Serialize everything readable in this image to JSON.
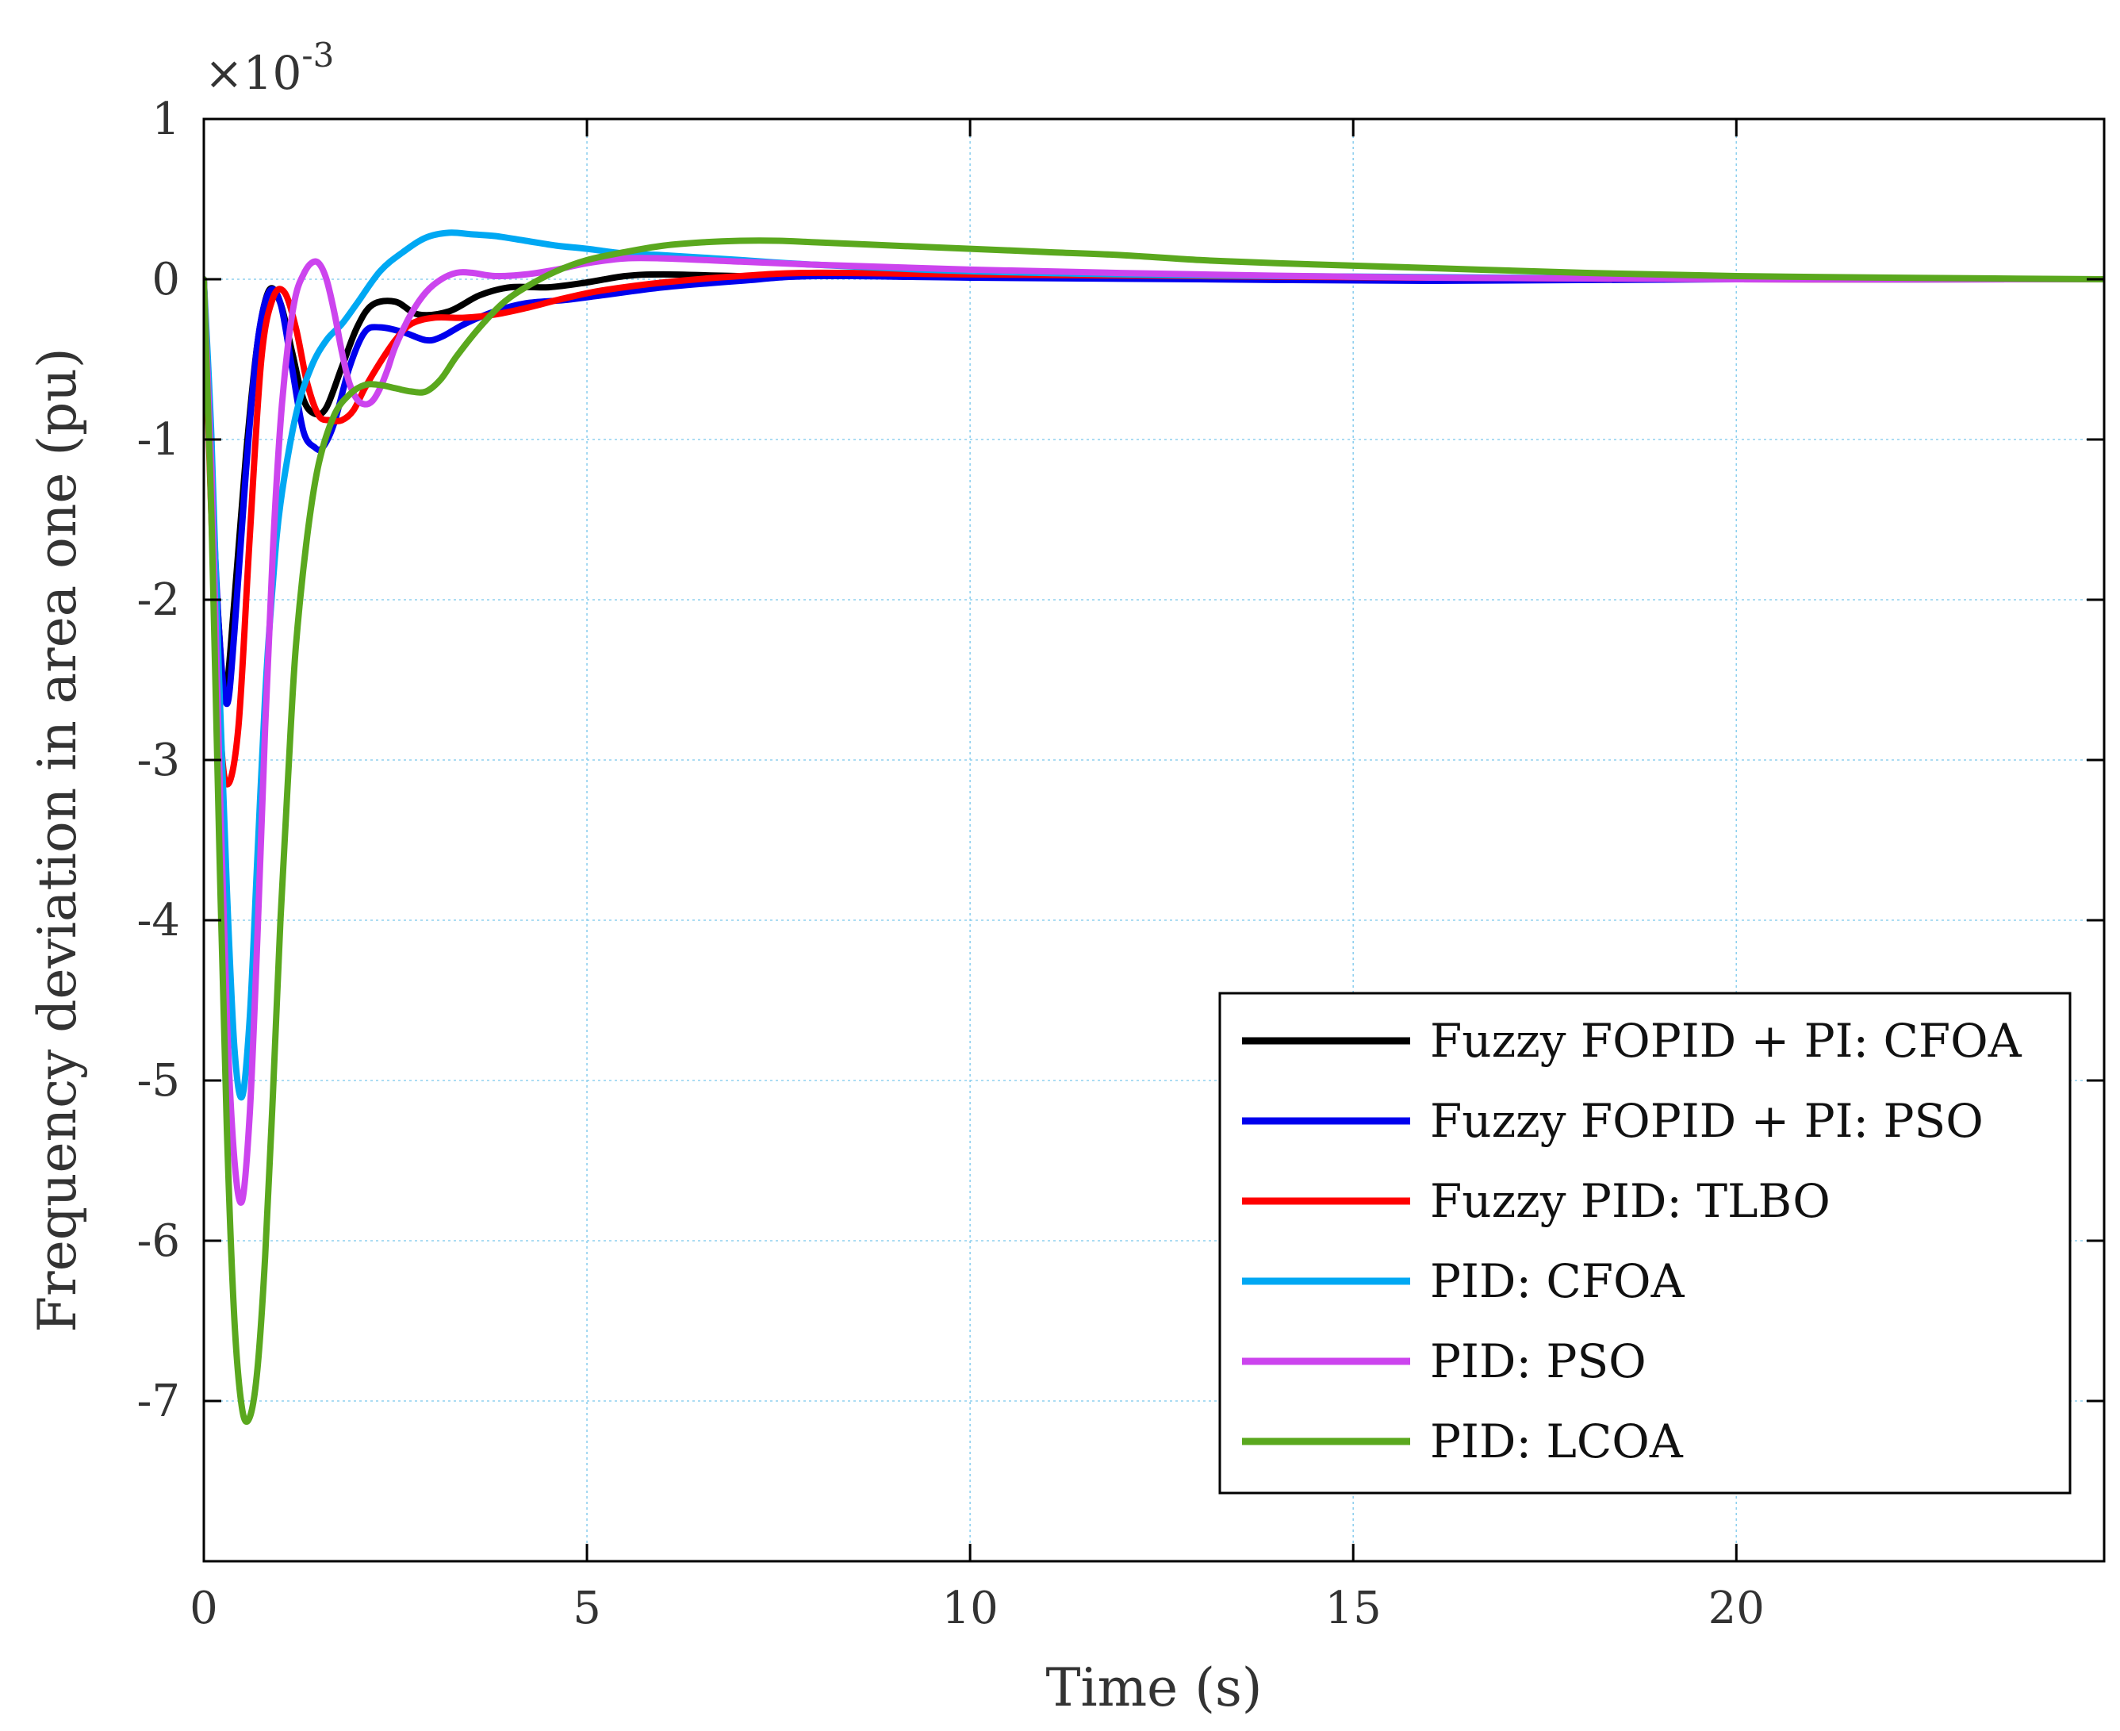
{
  "chart_data": {
    "type": "line",
    "title": "",
    "xlabel": "Time (s)",
    "ylabel": "Frequency deviation in area one  (pu)",
    "y_scale_factor": "×10",
    "y_scale_exponent": "-3",
    "xlim": [
      0,
      24.8
    ],
    "ylim": [
      -8,
      1
    ],
    "x_ticks": [
      0,
      5,
      10,
      15,
      20
    ],
    "x_tick_labels": [
      "0",
      "5",
      "10",
      "15",
      "20"
    ],
    "y_ticks": [
      1,
      0,
      -1,
      -2,
      -3,
      -4,
      -5,
      -6,
      -7
    ],
    "y_tick_labels": [
      "1",
      "0",
      "-1",
      "-2",
      "-3",
      "-4",
      "-5",
      "-6",
      "-7"
    ],
    "grid": true,
    "legend_position": "bottom-right",
    "series": [
      {
        "name": "Fuzzy FOPID + PI: CFOA",
        "color": "#000000",
        "x": [
          0,
          0.1,
          0.2,
          0.28,
          0.4,
          0.55,
          0.7,
          0.85,
          1.0,
          1.15,
          1.3,
          1.45,
          1.6,
          1.8,
          2.0,
          2.2,
          2.5,
          2.8,
          3.2,
          3.6,
          4.0,
          4.5,
          5.0,
          5.5,
          6.0,
          7.0,
          8.0,
          10,
          13,
          16,
          20,
          24.8
        ],
        "y": [
          0,
          -1.3,
          -2.2,
          -2.6,
          -2.0,
          -1.1,
          -0.4,
          -0.07,
          -0.15,
          -0.45,
          -0.75,
          -0.84,
          -0.8,
          -0.55,
          -0.3,
          -0.16,
          -0.14,
          -0.22,
          -0.2,
          -0.1,
          -0.05,
          -0.05,
          -0.02,
          0.02,
          0.03,
          0.02,
          0.02,
          0.02,
          0.01,
          0.01,
          0.0,
          0.0
        ]
      },
      {
        "name": "Fuzzy FOPID + PI: PSO",
        "color": "#0000ee",
        "x": [
          0,
          0.1,
          0.2,
          0.3,
          0.4,
          0.55,
          0.7,
          0.85,
          1.0,
          1.15,
          1.3,
          1.45,
          1.55,
          1.7,
          1.9,
          2.1,
          2.3,
          2.6,
          2.9,
          3.1,
          3.4,
          3.8,
          4.2,
          4.7,
          5.2,
          6.0,
          7.0,
          8.0,
          10,
          13,
          16,
          20,
          24.8
        ],
        "y": [
          0,
          -1.2,
          -2.2,
          -2.65,
          -2.2,
          -1.2,
          -0.4,
          -0.08,
          -0.15,
          -0.55,
          -0.95,
          -1.05,
          -1.05,
          -0.9,
          -0.55,
          -0.33,
          -0.3,
          -0.33,
          -0.38,
          -0.36,
          -0.28,
          -0.2,
          -0.15,
          -0.13,
          -0.1,
          -0.05,
          -0.01,
          0.02,
          0.01,
          0.0,
          -0.01,
          0.0,
          0.0
        ]
      },
      {
        "name": "Fuzzy PID: TLBO",
        "color": "#ff0000",
        "x": [
          0,
          0.1,
          0.2,
          0.3,
          0.45,
          0.6,
          0.75,
          0.9,
          1.05,
          1.2,
          1.35,
          1.5,
          1.65,
          1.8,
          1.95,
          2.1,
          2.3,
          2.5,
          2.7,
          3.0,
          3.4,
          3.8,
          4.2,
          4.7,
          5.2,
          6.0,
          7.0,
          8.0,
          10,
          13,
          16,
          20,
          24.8
        ],
        "y": [
          0,
          -1.5,
          -2.7,
          -3.15,
          -2.8,
          -1.6,
          -0.5,
          -0.12,
          -0.08,
          -0.3,
          -0.65,
          -0.85,
          -0.88,
          -0.88,
          -0.82,
          -0.68,
          -0.52,
          -0.38,
          -0.28,
          -0.24,
          -0.24,
          -0.22,
          -0.18,
          -0.12,
          -0.07,
          -0.02,
          0.02,
          0.04,
          0.03,
          0.02,
          0.01,
          0.0,
          0.0
        ]
      },
      {
        "name": "PID: CFOA",
        "color": "#00a8f3",
        "x": [
          0,
          0.1,
          0.2,
          0.3,
          0.4,
          0.5,
          0.6,
          0.7,
          0.8,
          0.9,
          1.0,
          1.2,
          1.4,
          1.6,
          1.8,
          2.0,
          2.3,
          2.6,
          2.9,
          3.2,
          3.5,
          3.8,
          4.2,
          4.6,
          5.0,
          5.5,
          6.0,
          7.0,
          8.0,
          10,
          12,
          14,
          17,
          20,
          24.8
        ],
        "y": [
          0,
          -1.0,
          -2.5,
          -3.8,
          -4.8,
          -5.1,
          -4.6,
          -3.6,
          -2.6,
          -1.9,
          -1.4,
          -0.85,
          -0.55,
          -0.38,
          -0.28,
          -0.15,
          0.05,
          0.17,
          0.26,
          0.29,
          0.28,
          0.27,
          0.24,
          0.21,
          0.19,
          0.16,
          0.15,
          0.12,
          0.09,
          0.05,
          0.03,
          0.02,
          0.01,
          0.0,
          0.0
        ]
      },
      {
        "name": "PID: PSO",
        "color": "#cc44ee",
        "x": [
          0,
          0.1,
          0.2,
          0.3,
          0.4,
          0.5,
          0.6,
          0.7,
          0.8,
          0.9,
          1.0,
          1.1,
          1.2,
          1.3,
          1.4,
          1.5,
          1.6,
          1.7,
          1.8,
          1.9,
          2.0,
          2.1,
          2.2,
          2.3,
          2.4,
          2.5,
          2.7,
          2.9,
          3.1,
          3.3,
          3.5,
          3.8,
          4.2,
          4.6,
          5.0,
          5.5,
          6.0,
          7.0,
          8.0,
          10,
          13,
          16,
          20,
          24.8
        ],
        "y": [
          0,
          -1.2,
          -3.0,
          -4.6,
          -5.5,
          -5.75,
          -5.2,
          -4.1,
          -2.8,
          -1.7,
          -0.9,
          -0.4,
          -0.1,
          0.03,
          0.1,
          0.1,
          0.0,
          -0.2,
          -0.45,
          -0.65,
          -0.75,
          -0.78,
          -0.76,
          -0.68,
          -0.56,
          -0.42,
          -0.22,
          -0.08,
          0.0,
          0.04,
          0.04,
          0.02,
          0.03,
          0.06,
          0.1,
          0.13,
          0.13,
          0.11,
          0.09,
          0.06,
          0.03,
          0.01,
          0.0,
          0.0
        ]
      },
      {
        "name": "PID: LCOA",
        "color": "#5aa81e",
        "x": [
          0,
          0.1,
          0.2,
          0.3,
          0.4,
          0.5,
          0.6,
          0.7,
          0.8,
          0.9,
          1.0,
          1.1,
          1.2,
          1.35,
          1.5,
          1.7,
          1.9,
          2.1,
          2.3,
          2.5,
          2.7,
          2.9,
          3.1,
          3.3,
          3.6,
          3.9,
          4.2,
          4.6,
          5.0,
          5.5,
          6.0,
          6.5,
          7.0,
          7.5,
          8.0,
          9.0,
          10,
          11,
          12,
          13,
          14,
          16,
          18,
          20,
          22,
          24.8
        ],
        "y": [
          0,
          -1.5,
          -3.5,
          -5.3,
          -6.5,
          -7.05,
          -7.1,
          -6.8,
          -6.1,
          -5.1,
          -4.0,
          -3.1,
          -2.3,
          -1.6,
          -1.15,
          -0.85,
          -0.72,
          -0.66,
          -0.66,
          -0.68,
          -0.7,
          -0.7,
          -0.62,
          -0.48,
          -0.3,
          -0.15,
          -0.05,
          0.05,
          0.12,
          0.17,
          0.21,
          0.23,
          0.24,
          0.24,
          0.23,
          0.21,
          0.19,
          0.17,
          0.15,
          0.12,
          0.1,
          0.07,
          0.04,
          0.02,
          0.01,
          0.0
        ]
      }
    ]
  }
}
